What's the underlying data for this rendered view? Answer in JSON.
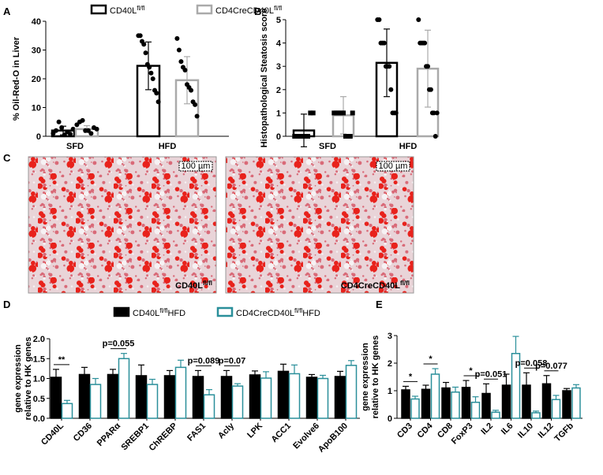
{
  "chart_data": [
    {
      "panel": "A",
      "type": "bar",
      "ylabel": [
        "% Oil-Red-O in Liver"
      ],
      "categories": [
        "SFD",
        "HFD"
      ],
      "ylim": [
        0,
        40
      ],
      "yticks": [
        0,
        10,
        20,
        30,
        40
      ],
      "series": [
        {
          "name": "CD40L",
          "sup": "fl/fl",
          "color": "#000000",
          "values": [
            2,
            24.5
          ],
          "errors": [
            1.5,
            8.3
          ],
          "points": [
            [
              1,
              2,
              5,
              3,
              0.5,
              1.5,
              0.8,
              2.5
            ],
            [
              35,
              35,
              33,
              32,
              29,
              25,
              24,
              22,
              20,
              16,
              15,
              12
            ]
          ]
        },
        {
          "name": "CD4CreCD40L",
          "sup": "fl/fl",
          "color": "#aaaaaa",
          "values": [
            2.5,
            19.5
          ],
          "errors": [
            1.2,
            8.2
          ],
          "points": [
            [
              4,
              5,
              5.5,
              2,
              2,
              1,
              3,
              2.5
            ],
            [
              34,
              30,
              26,
              24,
              23,
              18,
              17,
              16,
              12,
              11,
              7
            ]
          ]
        }
      ]
    },
    {
      "panel": "B",
      "type": "bar",
      "ylabel": [
        "Histopathological Steatosis score"
      ],
      "categories": [
        "SFD",
        "HFD"
      ],
      "ylim": [
        0,
        5
      ],
      "yticks": [
        0,
        1,
        2,
        3,
        4,
        5
      ],
      "series": [
        {
          "color": "#000000",
          "values": [
            0.25,
            3.15
          ],
          "errors": [
            0.7,
            1.45
          ],
          "points": [
            [
              0,
              0,
              0,
              0,
              0,
              0,
              1,
              1
            ],
            [
              5,
              5,
              4,
              4,
              4,
              3,
              3,
              3,
              2,
              1,
              1,
              1
            ]
          ]
        },
        {
          "color": "#aaaaaa",
          "values": [
            0.9,
            2.9
          ],
          "errors": [
            0.8,
            1.65
          ],
          "points": [
            [
              1,
              1,
              1,
              1,
              1,
              0,
              0,
              0,
              1
            ],
            [
              5,
              4,
              4,
              4,
              4,
              3,
              3,
              2,
              2,
              1,
              1,
              0,
              1
            ]
          ]
        }
      ]
    },
    {
      "panel": "D",
      "type": "bar",
      "ylabel": [
        "gene expression",
        "relative to HK genes"
      ],
      "categories": [
        "CD40L",
        "CD36",
        "PPARα",
        "SREBP1",
        "ChREBP",
        "FAS1",
        "Acly",
        "LPK",
        "ACC1",
        "Evolve6",
        "ApoB100"
      ],
      "ylim": [
        0,
        2
      ],
      "yticks": [
        {
          "value": 0,
          "label": "0.0"
        },
        {
          "value": 0.5,
          "label": "0.5"
        },
        {
          "value": 1,
          "label": "1.0"
        },
        {
          "value": 1.5,
          "label": "1.5"
        },
        {
          "value": 2,
          "label": "2.0"
        }
      ],
      "series": [
        {
          "name": "CD40L",
          "sup": "fl/fl",
          "suffix": "HFD",
          "color": "#000000",
          "values": [
            1.03,
            1.1,
            1.1,
            1.07,
            1.07,
            1.05,
            1.05,
            1.09,
            1.18,
            1.03,
            1.05
          ],
          "errors": [
            0.2,
            0.18,
            0.13,
            0.27,
            0.13,
            0.15,
            0.15,
            0.1,
            0.18,
            0.07,
            0.13
          ]
        },
        {
          "name": "CD4CreCD40L",
          "sup": "fl/fl",
          "suffix": "HFD",
          "color": "#2a8f9a",
          "values": [
            0.37,
            0.85,
            1.5,
            0.85,
            1.28,
            0.59,
            0.81,
            1.01,
            1.12,
            1.0,
            1.33
          ],
          "errors": [
            0.08,
            0.15,
            0.13,
            0.13,
            0.18,
            0.13,
            0.06,
            0.16,
            0.22,
            0.08,
            0.12
          ]
        }
      ],
      "annotations": [
        "**",
        "p=0.055",
        "p=0.089",
        "p=0.07"
      ]
    },
    {
      "panel": "E",
      "type": "bar",
      "ylabel": [
        "gene expression",
        "relative to HK genes"
      ],
      "categories": [
        "CD3",
        "CD4",
        "CD8",
        "FoxP3",
        "IL2",
        "IL6",
        "IL10",
        "IL12",
        "TGFb"
      ],
      "ylim": [
        0,
        3
      ],
      "yticks": [
        0,
        1,
        2,
        3
      ],
      "series": [
        {
          "color": "#000000",
          "values": [
            1.03,
            1.05,
            1.1,
            1.12,
            0.9,
            1.2,
            1.2,
            1.25,
            1.0
          ],
          "errors": [
            0.13,
            0.15,
            0.2,
            0.25,
            0.35,
            0.4,
            0.45,
            0.3,
            0.08
          ]
        },
        {
          "color": "#2a8f9a",
          "values": [
            0.7,
            1.6,
            0.95,
            0.58,
            0.22,
            2.35,
            0.2,
            0.68,
            1.1
          ],
          "errors": [
            0.1,
            0.2,
            0.18,
            0.2,
            0.07,
            0.62,
            0.06,
            0.15,
            0.12
          ]
        }
      ],
      "annotations": [
        "*",
        "*",
        "*",
        "p=0.051",
        "p=0.058",
        "p=0.077"
      ]
    }
  ],
  "images": {
    "panel": "C",
    "scale": "100 µm",
    "left": {
      "name": "CD40L",
      "sup": "fl/fl"
    },
    "right": {
      "name": "CD4CreCD40L",
      "sup": "fl/fl"
    }
  }
}
